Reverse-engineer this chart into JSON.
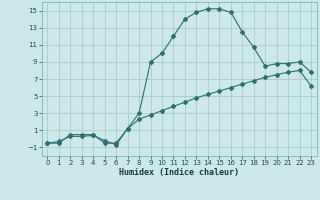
{
  "title": "",
  "xlabel": "Humidex (Indice chaleur)",
  "background_color": "#cce8ea",
  "grid_color": "#aaccce",
  "line_color": "#2a7070",
  "xlim": [
    -0.5,
    23.5
  ],
  "ylim": [
    -2.0,
    16.0
  ],
  "xticks": [
    0,
    1,
    2,
    3,
    4,
    5,
    6,
    7,
    8,
    9,
    10,
    11,
    12,
    13,
    14,
    15,
    16,
    17,
    18,
    19,
    20,
    21,
    22,
    23
  ],
  "yticks": [
    -1,
    1,
    3,
    5,
    7,
    9,
    11,
    13,
    15
  ],
  "series1_x": [
    0,
    1,
    2,
    3,
    4,
    5,
    6,
    7,
    8,
    9,
    10,
    11,
    12,
    13,
    14,
    15,
    16,
    17,
    18,
    19,
    20,
    21,
    22,
    23
  ],
  "series1_y": [
    -0.5,
    -0.5,
    0.5,
    0.5,
    0.5,
    -0.5,
    -0.5,
    1.2,
    3.0,
    9.0,
    10.0,
    12.0,
    14.0,
    14.8,
    15.2,
    15.2,
    14.8,
    12.5,
    10.7,
    8.5,
    8.8,
    8.8,
    9.0,
    7.8
  ],
  "series2_x": [
    0,
    1,
    2,
    3,
    4,
    5,
    6,
    7,
    8,
    9,
    10,
    11,
    12,
    13,
    14,
    15,
    16,
    17,
    18,
    19,
    20,
    21,
    22,
    23
  ],
  "series2_y": [
    -0.5,
    -0.3,
    0.3,
    0.3,
    0.4,
    -0.2,
    -0.7,
    1.2,
    2.3,
    2.8,
    3.3,
    3.8,
    4.3,
    4.8,
    5.2,
    5.6,
    6.0,
    6.4,
    6.8,
    7.2,
    7.5,
    7.8,
    8.0,
    6.2
  ]
}
